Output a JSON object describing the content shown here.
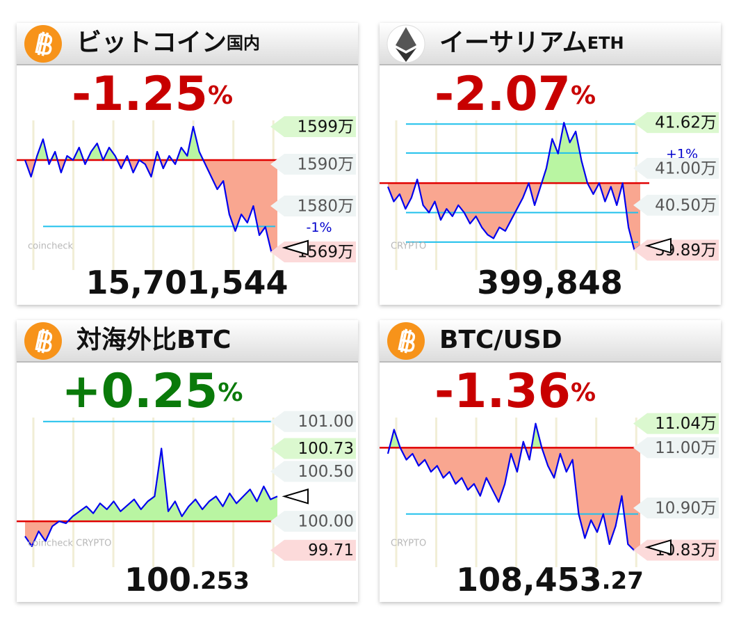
{
  "chart_data": [
    {
      "type": "line",
      "icon": "btc",
      "title": "ビットコイン",
      "subtitle": "国内",
      "change": "-1.25",
      "change_unit": "%",
      "change_color": "#c80000",
      "price": "15,701,544",
      "watermark": "coincheck",
      "ylim": [
        15680000,
        16005000
      ],
      "yticks": [
        {
          "value": 15900000,
          "label": "1590万"
        },
        {
          "value": 15800000,
          "label": "1580万"
        }
      ],
      "high": {
        "value": 15990000,
        "label": "1599万"
      },
      "low": {
        "value": 15690000,
        "label": "1569万"
      },
      "open": 15910000,
      "ref_lines": [
        {
          "value": 15751000,
          "label": "-1%"
        }
      ],
      "values": [
        15910000,
        15870000,
        15920000,
        15960000,
        15900000,
        15930000,
        15880000,
        15920000,
        15910000,
        15940000,
        15900000,
        15930000,
        15950000,
        15910000,
        15940000,
        15920000,
        15890000,
        15920000,
        15880000,
        15910000,
        15900000,
        15870000,
        15930000,
        15890000,
        15920000,
        15900000,
        15940000,
        15920000,
        15990000,
        15930000,
        15900000,
        15870000,
        15840000,
        15860000,
        15780000,
        15740000,
        15780000,
        15760000,
        15800000,
        15730000,
        15750000,
        15690000,
        15700000
      ]
    },
    {
      "type": "line",
      "icon": "eth",
      "title": "イーサリアム",
      "subtitle": "ETH",
      "change": "-2.07",
      "change_unit": "%",
      "change_color": "#c80000",
      "price": "399,848",
      "watermark": "CRYPTO",
      "ylim": [
        398100,
        416500
      ],
      "yticks": [
        {
          "value": 410000,
          "label": "41.00万"
        },
        {
          "value": 405000,
          "label": "40.50万"
        }
      ],
      "high": {
        "value": 416200,
        "label": "41.62万"
      },
      "low": {
        "value": 398900,
        "label": "39.89万"
      },
      "open": 408000,
      "ref_lines": [
        {
          "value": 416000
        },
        {
          "value": 412080,
          "label": "+1%"
        },
        {
          "value": 404000
        },
        {
          "value": 400000
        }
      ],
      "values": [
        407500,
        405500,
        406500,
        404500,
        406000,
        408500,
        405000,
        404000,
        405500,
        403000,
        404500,
        403500,
        405000,
        404000,
        402500,
        403500,
        402000,
        401000,
        400500,
        402000,
        401500,
        403000,
        404500,
        406000,
        408000,
        405000,
        407500,
        410000,
        414000,
        412000,
        416200,
        413500,
        415000,
        411000,
        408000,
        406500,
        408000,
        405500,
        407500,
        405000,
        408000,
        402000,
        398900,
        399500
      ]
    },
    {
      "type": "line",
      "icon": "btc",
      "title": "対海外比BTC",
      "change": "+0.25",
      "change_unit": "%",
      "change_color": "#0a7a0a",
      "price": "100",
      "price_decimal": ".253",
      "watermark": "coincheck CRYPTO",
      "ylim": [
        99.68,
        101.04
      ],
      "yticks": [
        {
          "value": 101,
          "label": "101.00"
        },
        {
          "value": 100.5,
          "label": "100.50"
        },
        {
          "value": 100,
          "label": "100.00"
        }
      ],
      "high": {
        "value": 100.73,
        "label": "100.73"
      },
      "low": {
        "value": 99.71,
        "label": "99.71"
      },
      "open": 100,
      "ref_lines": [
        {
          "value": 101
        }
      ],
      "values": [
        99.85,
        99.75,
        99.9,
        99.8,
        99.95,
        100,
        99.98,
        100.05,
        100.1,
        100.15,
        100.08,
        100.18,
        100.12,
        100.2,
        100.1,
        100.16,
        100.22,
        100.12,
        100.2,
        100.25,
        100.73,
        100.1,
        100.2,
        100.05,
        100.15,
        100.22,
        100.12,
        100.2,
        100.25,
        100.15,
        100.28,
        100.18,
        100.25,
        100.32,
        100.2,
        100.35,
        100.22,
        100.25
      ]
    },
    {
      "type": "line",
      "icon": "btc",
      "title": "BTC/USD",
      "change": "-1.36",
      "change_unit": "%",
      "change_color": "#c80000",
      "price": "108,453",
      "price_decimal": ".27",
      "watermark": "CRYPTO",
      "ylim": [
        108250,
        110500
      ],
      "yticks": [
        {
          "value": 110000,
          "label": "11.00万"
        },
        {
          "value": 109000,
          "label": "10.90万"
        }
      ],
      "high": {
        "value": 110400,
        "label": "11.04万"
      },
      "low": {
        "value": 108300,
        "label": "10.83万"
      },
      "open": 110000,
      "ref_lines": [
        {
          "value": 108900
        }
      ],
      "values": [
        109900,
        110300,
        110000,
        109800,
        109900,
        109700,
        109800,
        109600,
        109700,
        109500,
        109600,
        109400,
        109500,
        109300,
        109400,
        109200,
        109500,
        109300,
        109100,
        109400,
        109900,
        109600,
        110100,
        109800,
        110400,
        110000,
        109700,
        109500,
        109900,
        109600,
        109800,
        108900,
        108500,
        108800,
        108600,
        108900,
        108400,
        108700,
        109200,
        108400,
        108300,
        108350
      ]
    }
  ]
}
